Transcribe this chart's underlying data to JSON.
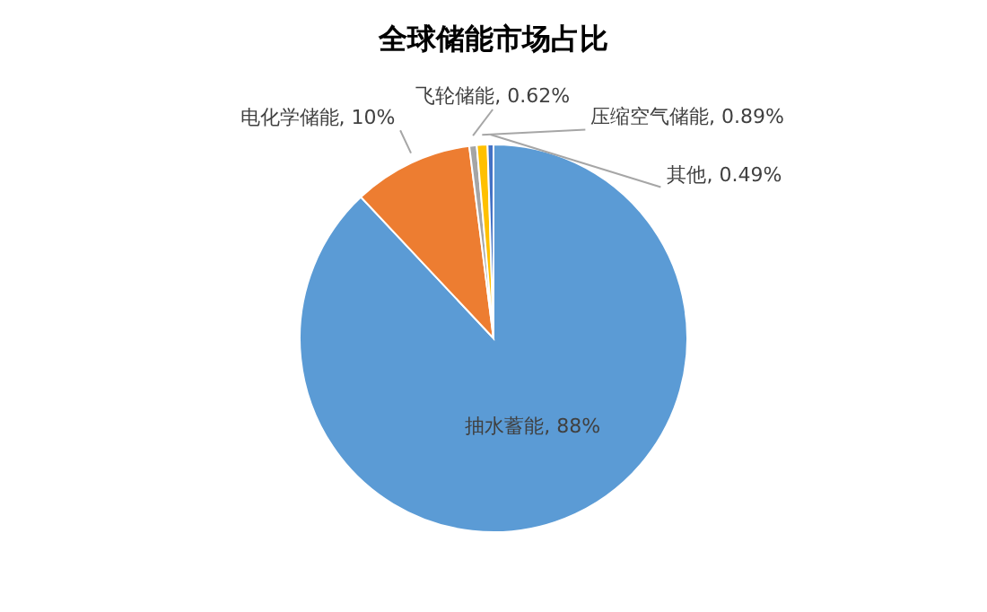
{
  "chart_data": {
    "type": "pie",
    "title": "全球储能市场占比",
    "categories": [
      "抽水蓄能",
      "电化学储能",
      "飞轮储能",
      "压缩空气储能",
      "其他"
    ],
    "values": [
      88,
      10,
      0.62,
      0.89,
      0.49
    ],
    "colors": [
      "#5b9bd5",
      "#ed7d31",
      "#a5a5a5",
      "#ffc000",
      "#4472c4"
    ],
    "value_labels": [
      "88%",
      "10%",
      "0.62%",
      "0.89%",
      "0.49%"
    ]
  }
}
